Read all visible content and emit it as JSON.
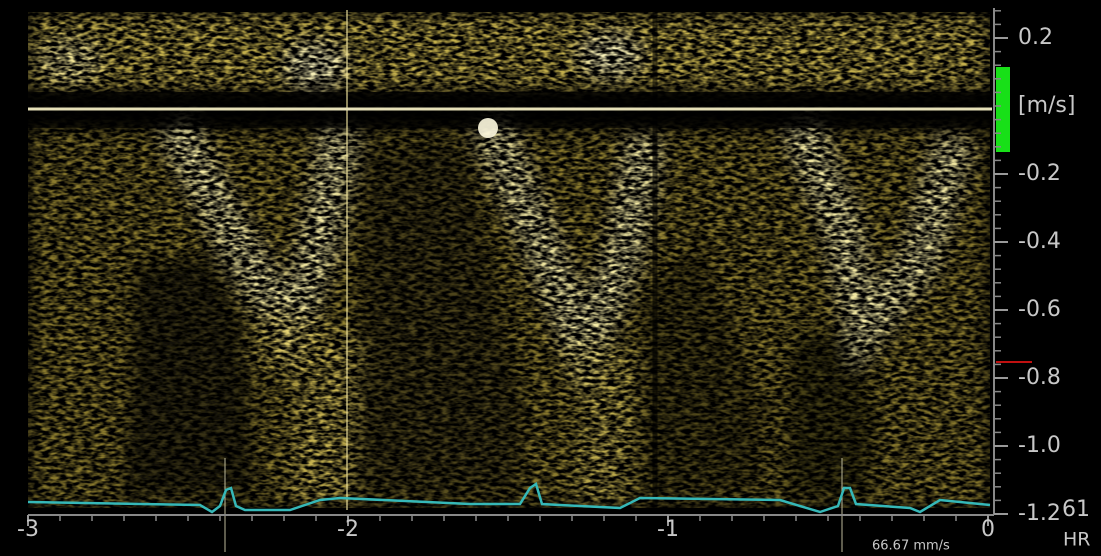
{
  "axis": {
    "ylim": [
      -1.2,
      0.28
    ],
    "yticks": [
      0.2,
      -0.2,
      -0.4,
      -0.6,
      -0.8,
      {
        "value": -1,
        "label": "-1.0"
      },
      -1.2
    ],
    "y_unit": "[m/s]",
    "xlim": [
      -3,
      0
    ],
    "xticks": [
      -3,
      -2,
      -1,
      0
    ]
  },
  "status": {
    "sweep_speed": "66.67 mm/s",
    "hr_label": "HR",
    "hr_value": 61
  }
}
